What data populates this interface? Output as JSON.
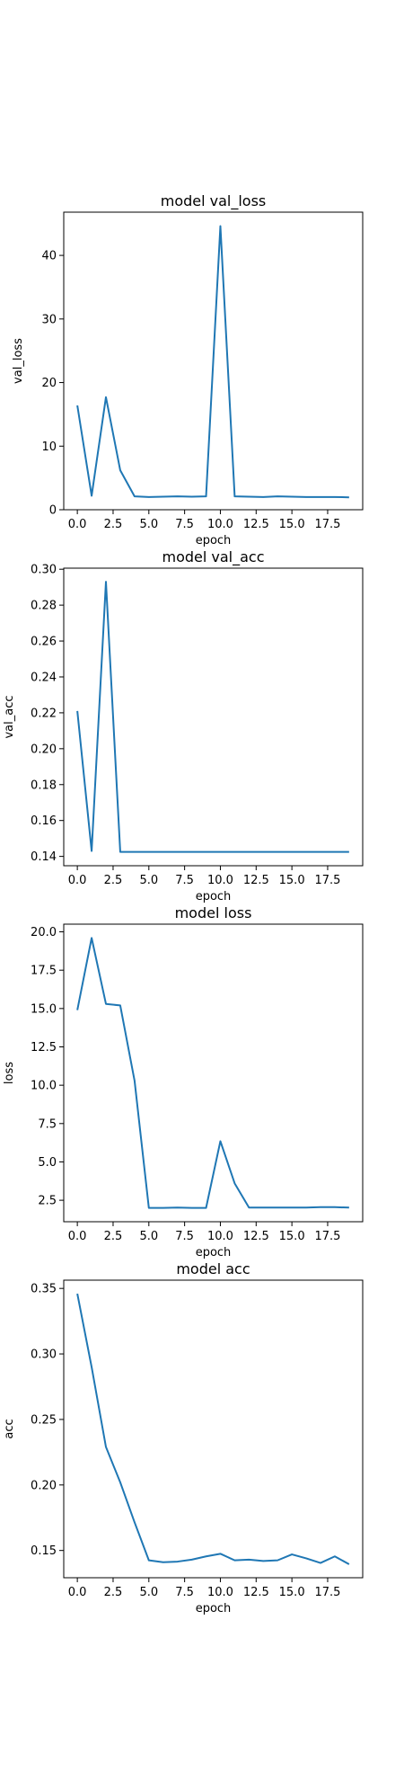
{
  "chart_data": [
    {
      "type": "line",
      "title": "model val_loss",
      "xlabel": "epoch",
      "ylabel": "val_loss",
      "x": [
        0,
        1,
        2,
        3,
        4,
        5,
        6,
        7,
        8,
        9,
        10,
        11,
        12,
        13,
        14,
        15,
        16,
        17,
        18,
        19
      ],
      "series": [
        {
          "values": [
            16.4,
            2.2,
            17.7,
            6.2,
            2.1,
            2.0,
            2.05,
            2.1,
            2.05,
            2.1,
            44.6,
            2.1,
            2.05,
            2.0,
            2.1,
            2.05,
            2.0,
            2.0,
            2.0,
            1.95
          ],
          "color": "#1f77b4"
        }
      ],
      "xlim": [
        -0.95,
        19.95
      ],
      "ylim": [
        0,
        46.8
      ],
      "xticks": [
        0,
        2.5,
        5,
        7.5,
        10,
        12.5,
        15,
        17.5
      ],
      "xtick_labels": [
        "0.0",
        "2.5",
        "5.0",
        "7.5",
        "10.0",
        "12.5",
        "15.0",
        "17.5"
      ],
      "yticks": [
        0,
        10,
        20,
        30,
        40
      ],
      "ytick_labels": [
        "0",
        "10",
        "20",
        "30",
        "40"
      ],
      "grid": false
    },
    {
      "type": "line",
      "title": "model val_acc",
      "xlabel": "epoch",
      "ylabel": "val_acc",
      "x": [
        0,
        1,
        2,
        3,
        4,
        5,
        6,
        7,
        8,
        9,
        10,
        11,
        12,
        13,
        14,
        15,
        16,
        17,
        18,
        19
      ],
      "series": [
        {
          "values": [
            0.221,
            0.143,
            0.293,
            0.1425,
            0.1425,
            0.1425,
            0.1425,
            0.1425,
            0.1425,
            0.1425,
            0.1425,
            0.1425,
            0.1425,
            0.1425,
            0.1425,
            0.1425,
            0.1425,
            0.1425,
            0.1425,
            0.1425
          ],
          "color": "#1f77b4"
        }
      ],
      "xlim": [
        -0.95,
        19.95
      ],
      "ylim": [
        0.1348,
        0.3006
      ],
      "xticks": [
        0,
        2.5,
        5,
        7.5,
        10,
        12.5,
        15,
        17.5
      ],
      "xtick_labels": [
        "0.0",
        "2.5",
        "5.0",
        "7.5",
        "10.0",
        "12.5",
        "15.0",
        "17.5"
      ],
      "yticks": [
        0.14,
        0.16,
        0.18,
        0.2,
        0.22,
        0.24,
        0.26,
        0.28,
        0.3
      ],
      "ytick_labels": [
        "0.14",
        "0.16",
        "0.18",
        "0.20",
        "0.22",
        "0.24",
        "0.26",
        "0.28",
        "0.30"
      ],
      "grid": false
    },
    {
      "type": "line",
      "title": "model loss",
      "xlabel": "epoch",
      "ylabel": "loss",
      "x": [
        0,
        1,
        2,
        3,
        4,
        5,
        6,
        7,
        8,
        9,
        10,
        11,
        12,
        13,
        14,
        15,
        16,
        17,
        18,
        19
      ],
      "series": [
        {
          "values": [
            14.9,
            19.6,
            15.3,
            15.2,
            10.3,
            2.0,
            2.0,
            2.02,
            2.0,
            2.0,
            6.35,
            3.6,
            2.02,
            2.02,
            2.02,
            2.02,
            2.02,
            2.05,
            2.05,
            2.02
          ],
          "color": "#1f77b4"
        }
      ],
      "xlim": [
        -0.95,
        19.95
      ],
      "ylim": [
        1.1,
        20.5
      ],
      "xticks": [
        0,
        2.5,
        5,
        7.5,
        10,
        12.5,
        15,
        17.5
      ],
      "xtick_labels": [
        "0.0",
        "2.5",
        "5.0",
        "7.5",
        "10.0",
        "12.5",
        "15.0",
        "17.5"
      ],
      "yticks": [
        2.5,
        5,
        7.5,
        10,
        12.5,
        15,
        17.5,
        20
      ],
      "ytick_labels": [
        "2.5",
        "5.0",
        "7.5",
        "10.0",
        "12.5",
        "15.0",
        "17.5",
        "20.0"
      ],
      "grid": false
    },
    {
      "type": "line",
      "title": "model acc",
      "xlabel": "epoch",
      "ylabel": "acc",
      "x": [
        0,
        1,
        2,
        3,
        4,
        5,
        6,
        7,
        8,
        9,
        10,
        11,
        12,
        13,
        14,
        15,
        16,
        17,
        18,
        19
      ],
      "series": [
        {
          "values": [
            0.346,
            0.29,
            0.229,
            0.202,
            0.1715,
            0.1425,
            0.141,
            0.1415,
            0.143,
            0.1455,
            0.1475,
            0.1425,
            0.143,
            0.142,
            0.1425,
            0.147,
            0.144,
            0.1405,
            0.1455,
            0.1395
          ],
          "color": "#1f77b4"
        }
      ],
      "xlim": [
        -0.95,
        19.95
      ],
      "ylim": [
        0.1292,
        0.3563
      ],
      "xticks": [
        0,
        2.5,
        5,
        7.5,
        10,
        12.5,
        15,
        17.5
      ],
      "xtick_labels": [
        "0.0",
        "2.5",
        "5.0",
        "7.5",
        "10.0",
        "12.5",
        "15.0",
        "17.5"
      ],
      "yticks": [
        0.15,
        0.2,
        0.25,
        0.3,
        0.35
      ],
      "ytick_labels": [
        "0.15",
        "0.20",
        "0.25",
        "0.30",
        "0.35"
      ],
      "grid": false
    }
  ]
}
